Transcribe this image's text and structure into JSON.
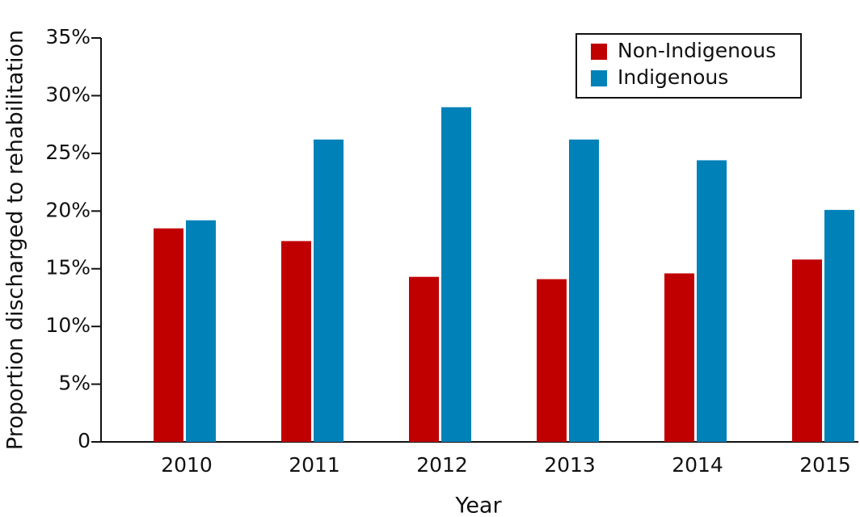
{
  "chart_data": {
    "type": "bar",
    "x_label": "Year",
    "y_label": "Proportion discharged to rehabilitation",
    "categories": [
      "2010",
      "2011",
      "2012",
      "2013",
      "2014",
      "2015"
    ],
    "series": [
      {
        "name": "Non-Indigenous",
        "color": "#c00000",
        "values": [
          18.5,
          17.4,
          14.3,
          14.1,
          14.6,
          15.8
        ]
      },
      {
        "name": "Indigenous",
        "color": "#0081b8",
        "values": [
          19.2,
          26.2,
          29.0,
          26.2,
          24.4,
          20.1
        ]
      }
    ],
    "ylim": [
      0,
      35
    ],
    "yticks": [
      0,
      {
        "value": 5,
        "label": "5%"
      },
      {
        "value": 10,
        "label": "10%"
      },
      {
        "value": 15,
        "label": "15%"
      },
      {
        "value": 20,
        "label": "20%"
      },
      {
        "value": 25,
        "label": "25%"
      },
      {
        "value": 30,
        "label": "30%"
      },
      {
        "value": 35,
        "label": "35%"
      }
    ],
    "grid": false,
    "legend": "upper right"
  }
}
